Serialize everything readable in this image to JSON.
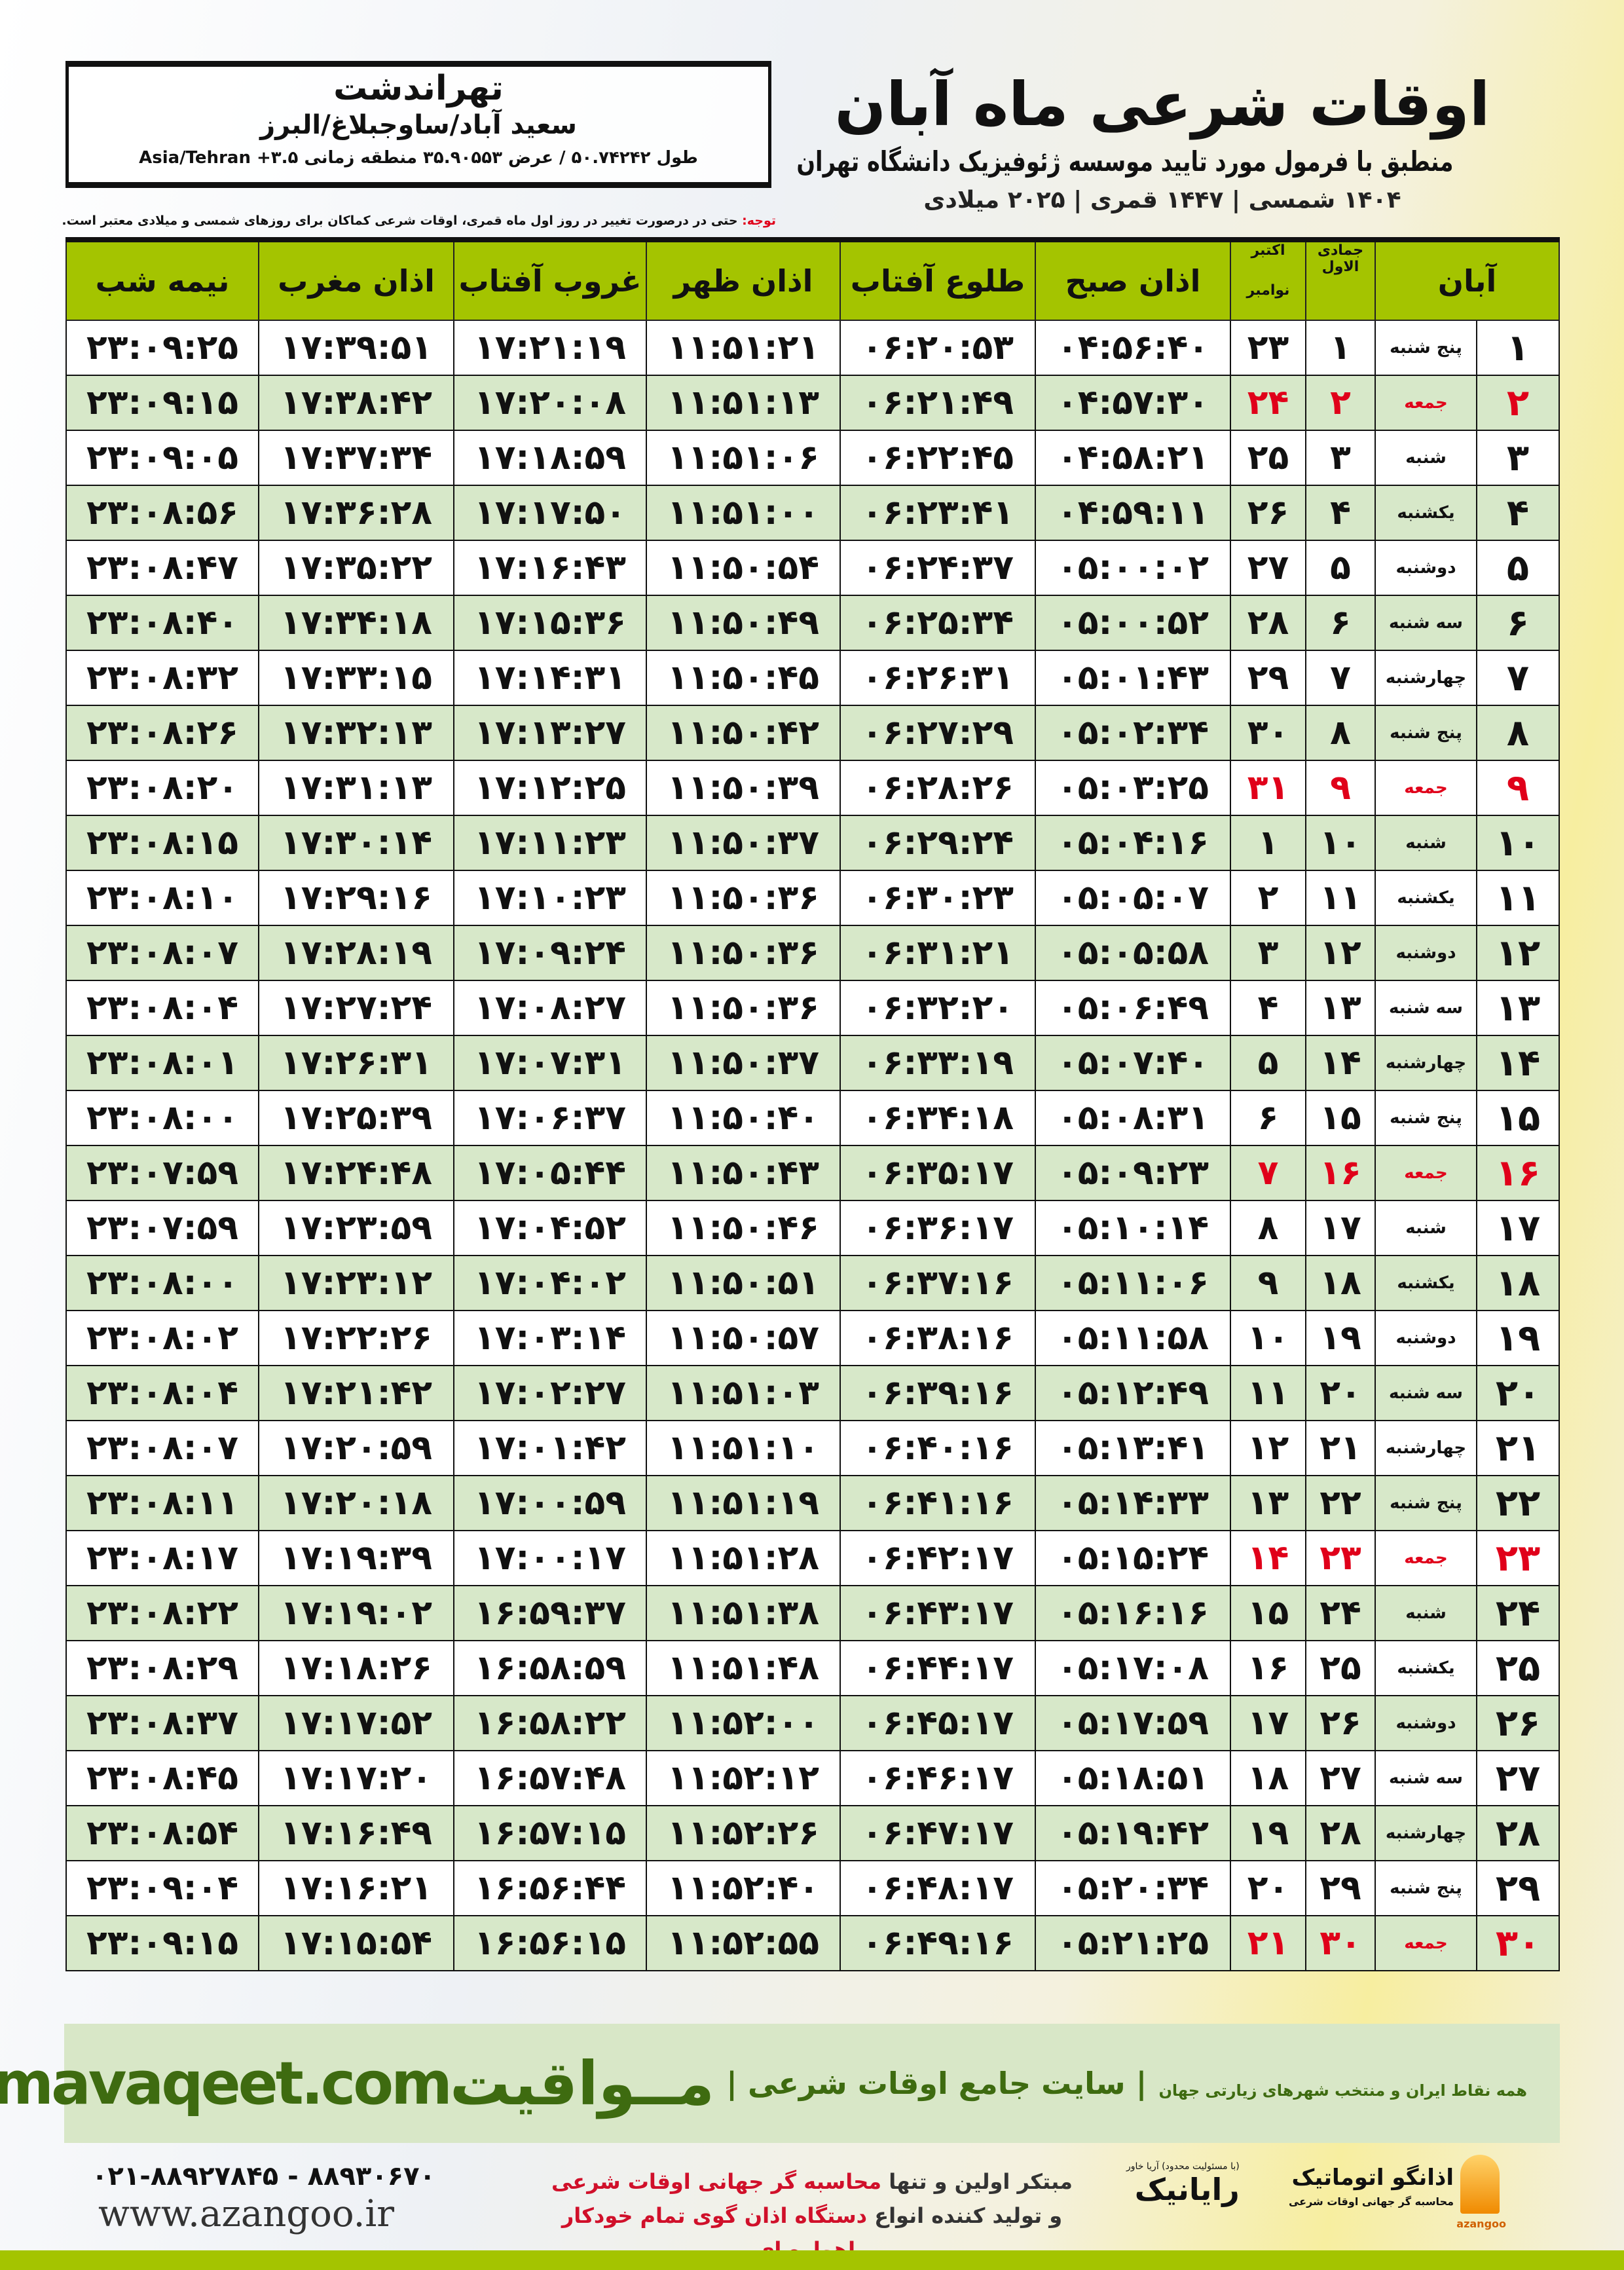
{
  "location": {
    "name": "تهراندشت",
    "region": "سعید آباد/ساوجبلاغ/البرز",
    "coords": "طول ۵۰.۷۴۲۴۲ / عرض ۳۵.۹۰۵۵۳ منطقه زمانی ۳.۵+ Asia/Tehran"
  },
  "header": {
    "title": "اوقات شرعی ماه آبان",
    "subtitle": "منطبق با فرمول مورد تایید موسسه ژئوفیزیک دانشگاه تهران",
    "years": "۱۴۰۴ شمسی | ۱۴۴۷ قمری | ۲۰۲۵ میلادی"
  },
  "note": {
    "label": "توجه:",
    "text": " حتی در درصورت تغییر در روز اول ماه قمری، اوقات شرعی کماکان برای روزهای شمسی و میلادی معتبر است."
  },
  "columns": {
    "aban": "آبان",
    "qamari": "جمادی الاول",
    "gregorian_top": "اکتبر",
    "gregorian_bottom": "نوامبر",
    "sobh": "اذان صبح",
    "tolu": "طلوع آفتاب",
    "zohr": "اذان ظهر",
    "ghorub": "غروب آفتاب",
    "maghrib": "اذان مغرب",
    "nimeshab": "نیمه شب"
  },
  "colors": {
    "header_green": "#a4c400",
    "row_green": "#d7e8c9",
    "friday_red": "#e0001a",
    "brand_green": "#3e6b10"
  },
  "rows": [
    {
      "aban": "۱",
      "weekday": "پنج شنبه",
      "qamari": "۱",
      "greg": "۲۳",
      "sobh": "۰۴:۵۶:۴۰",
      "tolu": "۰۶:۲۰:۵۳",
      "zohr": "۱۱:۵۱:۲۱",
      "ghorub": "۱۷:۲۱:۱۹",
      "maghrib": "۱۷:۳۹:۵۱",
      "nimeshab": "۲۳:۰۹:۲۵",
      "friday": false
    },
    {
      "aban": "۲",
      "weekday": "جمعه",
      "qamari": "۲",
      "greg": "۲۴",
      "sobh": "۰۴:۵۷:۳۰",
      "tolu": "۰۶:۲۱:۴۹",
      "zohr": "۱۱:۵۱:۱۳",
      "ghorub": "۱۷:۲۰:۰۸",
      "maghrib": "۱۷:۳۸:۴۲",
      "nimeshab": "۲۳:۰۹:۱۵",
      "friday": true
    },
    {
      "aban": "۳",
      "weekday": "شنبه",
      "qamari": "۳",
      "greg": "۲۵",
      "sobh": "۰۴:۵۸:۲۱",
      "tolu": "۰۶:۲۲:۴۵",
      "zohr": "۱۱:۵۱:۰۶",
      "ghorub": "۱۷:۱۸:۵۹",
      "maghrib": "۱۷:۳۷:۳۴",
      "nimeshab": "۲۳:۰۹:۰۵",
      "friday": false
    },
    {
      "aban": "۴",
      "weekday": "یکشنبه",
      "qamari": "۴",
      "greg": "۲۶",
      "sobh": "۰۴:۵۹:۱۱",
      "tolu": "۰۶:۲۳:۴۱",
      "zohr": "۱۱:۵۱:۰۰",
      "ghorub": "۱۷:۱۷:۵۰",
      "maghrib": "۱۷:۳۶:۲۸",
      "nimeshab": "۲۳:۰۸:۵۶",
      "friday": false
    },
    {
      "aban": "۵",
      "weekday": "دوشنبه",
      "qamari": "۵",
      "greg": "۲۷",
      "sobh": "۰۵:۰۰:۰۲",
      "tolu": "۰۶:۲۴:۳۷",
      "zohr": "۱۱:۵۰:۵۴",
      "ghorub": "۱۷:۱۶:۴۳",
      "maghrib": "۱۷:۳۵:۲۲",
      "nimeshab": "۲۳:۰۸:۴۷",
      "friday": false
    },
    {
      "aban": "۶",
      "weekday": "سه شنبه",
      "qamari": "۶",
      "greg": "۲۸",
      "sobh": "۰۵:۰۰:۵۲",
      "tolu": "۰۶:۲۵:۳۴",
      "zohr": "۱۱:۵۰:۴۹",
      "ghorub": "۱۷:۱۵:۳۶",
      "maghrib": "۱۷:۳۴:۱۸",
      "nimeshab": "۲۳:۰۸:۴۰",
      "friday": false
    },
    {
      "aban": "۷",
      "weekday": "چهارشنبه",
      "qamari": "۷",
      "greg": "۲۹",
      "sobh": "۰۵:۰۱:۴۳",
      "tolu": "۰۶:۲۶:۳۱",
      "zohr": "۱۱:۵۰:۴۵",
      "ghorub": "۱۷:۱۴:۳۱",
      "maghrib": "۱۷:۳۳:۱۵",
      "nimeshab": "۲۳:۰۸:۳۲",
      "friday": false
    },
    {
      "aban": "۸",
      "weekday": "پنج شنبه",
      "qamari": "۸",
      "greg": "۳۰",
      "sobh": "۰۵:۰۲:۳۴",
      "tolu": "۰۶:۲۷:۲۹",
      "zohr": "۱۱:۵۰:۴۲",
      "ghorub": "۱۷:۱۳:۲۷",
      "maghrib": "۱۷:۳۲:۱۳",
      "nimeshab": "۲۳:۰۸:۲۶",
      "friday": false
    },
    {
      "aban": "۹",
      "weekday": "جمعه",
      "qamari": "۹",
      "greg": "۳۱",
      "sobh": "۰۵:۰۳:۲۵",
      "tolu": "۰۶:۲۸:۲۶",
      "zohr": "۱۱:۵۰:۳۹",
      "ghorub": "۱۷:۱۲:۲۵",
      "maghrib": "۱۷:۳۱:۱۳",
      "nimeshab": "۲۳:۰۸:۲۰",
      "friday": true
    },
    {
      "aban": "۱۰",
      "weekday": "شنبه",
      "qamari": "۱۰",
      "greg": "۱",
      "sobh": "۰۵:۰۴:۱۶",
      "tolu": "۰۶:۲۹:۲۴",
      "zohr": "۱۱:۵۰:۳۷",
      "ghorub": "۱۷:۱۱:۲۳",
      "maghrib": "۱۷:۳۰:۱۴",
      "nimeshab": "۲۳:۰۸:۱۵",
      "friday": false
    },
    {
      "aban": "۱۱",
      "weekday": "یکشنبه",
      "qamari": "۱۱",
      "greg": "۲",
      "sobh": "۰۵:۰۵:۰۷",
      "tolu": "۰۶:۳۰:۲۳",
      "zohr": "۱۱:۵۰:۳۶",
      "ghorub": "۱۷:۱۰:۲۳",
      "maghrib": "۱۷:۲۹:۱۶",
      "nimeshab": "۲۳:۰۸:۱۰",
      "friday": false
    },
    {
      "aban": "۱۲",
      "weekday": "دوشنبه",
      "qamari": "۱۲",
      "greg": "۳",
      "sobh": "۰۵:۰۵:۵۸",
      "tolu": "۰۶:۳۱:۲۱",
      "zohr": "۱۱:۵۰:۳۶",
      "ghorub": "۱۷:۰۹:۲۴",
      "maghrib": "۱۷:۲۸:۱۹",
      "nimeshab": "۲۳:۰۸:۰۷",
      "friday": false
    },
    {
      "aban": "۱۳",
      "weekday": "سه شنبه",
      "qamari": "۱۳",
      "greg": "۴",
      "sobh": "۰۵:۰۶:۴۹",
      "tolu": "۰۶:۳۲:۲۰",
      "zohr": "۱۱:۵۰:۳۶",
      "ghorub": "۱۷:۰۸:۲۷",
      "maghrib": "۱۷:۲۷:۲۴",
      "nimeshab": "۲۳:۰۸:۰۴",
      "friday": false
    },
    {
      "aban": "۱۴",
      "weekday": "چهارشنبه",
      "qamari": "۱۴",
      "greg": "۵",
      "sobh": "۰۵:۰۷:۴۰",
      "tolu": "۰۶:۳۳:۱۹",
      "zohr": "۱۱:۵۰:۳۷",
      "ghorub": "۱۷:۰۷:۳۱",
      "maghrib": "۱۷:۲۶:۳۱",
      "nimeshab": "۲۳:۰۸:۰۱",
      "friday": false
    },
    {
      "aban": "۱۵",
      "weekday": "پنج شنبه",
      "qamari": "۱۵",
      "greg": "۶",
      "sobh": "۰۵:۰۸:۳۱",
      "tolu": "۰۶:۳۴:۱۸",
      "zohr": "۱۱:۵۰:۴۰",
      "ghorub": "۱۷:۰۶:۳۷",
      "maghrib": "۱۷:۲۵:۳۹",
      "nimeshab": "۲۳:۰۸:۰۰",
      "friday": false
    },
    {
      "aban": "۱۶",
      "weekday": "جمعه",
      "qamari": "۱۶",
      "greg": "۷",
      "sobh": "۰۵:۰۹:۲۳",
      "tolu": "۰۶:۳۵:۱۷",
      "zohr": "۱۱:۵۰:۴۳",
      "ghorub": "۱۷:۰۵:۴۴",
      "maghrib": "۱۷:۲۴:۴۸",
      "nimeshab": "۲۳:۰۷:۵۹",
      "friday": true
    },
    {
      "aban": "۱۷",
      "weekday": "شنبه",
      "qamari": "۱۷",
      "greg": "۸",
      "sobh": "۰۵:۱۰:۱۴",
      "tolu": "۰۶:۳۶:۱۷",
      "zohr": "۱۱:۵۰:۴۶",
      "ghorub": "۱۷:۰۴:۵۲",
      "maghrib": "۱۷:۲۳:۵۹",
      "nimeshab": "۲۳:۰۷:۵۹",
      "friday": false
    },
    {
      "aban": "۱۸",
      "weekday": "یکشنبه",
      "qamari": "۱۸",
      "greg": "۹",
      "sobh": "۰۵:۱۱:۰۶",
      "tolu": "۰۶:۳۷:۱۶",
      "zohr": "۱۱:۵۰:۵۱",
      "ghorub": "۱۷:۰۴:۰۲",
      "maghrib": "۱۷:۲۳:۱۲",
      "nimeshab": "۲۳:۰۸:۰۰",
      "friday": false
    },
    {
      "aban": "۱۹",
      "weekday": "دوشنبه",
      "qamari": "۱۹",
      "greg": "۱۰",
      "sobh": "۰۵:۱۱:۵۸",
      "tolu": "۰۶:۳۸:۱۶",
      "zohr": "۱۱:۵۰:۵۷",
      "ghorub": "۱۷:۰۳:۱۴",
      "maghrib": "۱۷:۲۲:۲۶",
      "nimeshab": "۲۳:۰۸:۰۲",
      "friday": false
    },
    {
      "aban": "۲۰",
      "weekday": "سه شنبه",
      "qamari": "۲۰",
      "greg": "۱۱",
      "sobh": "۰۵:۱۲:۴۹",
      "tolu": "۰۶:۳۹:۱۶",
      "zohr": "۱۱:۵۱:۰۳",
      "ghorub": "۱۷:۰۲:۲۷",
      "maghrib": "۱۷:۲۱:۴۲",
      "nimeshab": "۲۳:۰۸:۰۴",
      "friday": false
    },
    {
      "aban": "۲۱",
      "weekday": "چهارشنبه",
      "qamari": "۲۱",
      "greg": "۱۲",
      "sobh": "۰۵:۱۳:۴۱",
      "tolu": "۰۶:۴۰:۱۶",
      "zohr": "۱۱:۵۱:۱۰",
      "ghorub": "۱۷:۰۱:۴۲",
      "maghrib": "۱۷:۲۰:۵۹",
      "nimeshab": "۲۳:۰۸:۰۷",
      "friday": false
    },
    {
      "aban": "۲۲",
      "weekday": "پنج شنبه",
      "qamari": "۲۲",
      "greg": "۱۳",
      "sobh": "۰۵:۱۴:۳۳",
      "tolu": "۰۶:۴۱:۱۶",
      "zohr": "۱۱:۵۱:۱۹",
      "ghorub": "۱۷:۰۰:۵۹",
      "maghrib": "۱۷:۲۰:۱۸",
      "nimeshab": "۲۳:۰۸:۱۱",
      "friday": false
    },
    {
      "aban": "۲۳",
      "weekday": "جمعه",
      "qamari": "۲۳",
      "greg": "۱۴",
      "sobh": "۰۵:۱۵:۲۴",
      "tolu": "۰۶:۴۲:۱۷",
      "zohr": "۱۱:۵۱:۲۸",
      "ghorub": "۱۷:۰۰:۱۷",
      "maghrib": "۱۷:۱۹:۳۹",
      "nimeshab": "۲۳:۰۸:۱۷",
      "friday": true
    },
    {
      "aban": "۲۴",
      "weekday": "شنبه",
      "qamari": "۲۴",
      "greg": "۱۵",
      "sobh": "۰۵:۱۶:۱۶",
      "tolu": "۰۶:۴۳:۱۷",
      "zohr": "۱۱:۵۱:۳۸",
      "ghorub": "۱۶:۵۹:۳۷",
      "maghrib": "۱۷:۱۹:۰۲",
      "nimeshab": "۲۳:۰۸:۲۲",
      "friday": false
    },
    {
      "aban": "۲۵",
      "weekday": "یکشنبه",
      "qamari": "۲۵",
      "greg": "۱۶",
      "sobh": "۰۵:۱۷:۰۸",
      "tolu": "۰۶:۴۴:۱۷",
      "zohr": "۱۱:۵۱:۴۸",
      "ghorub": "۱۶:۵۸:۵۹",
      "maghrib": "۱۷:۱۸:۲۶",
      "nimeshab": "۲۳:۰۸:۲۹",
      "friday": false
    },
    {
      "aban": "۲۶",
      "weekday": "دوشنبه",
      "qamari": "۲۶",
      "greg": "۱۷",
      "sobh": "۰۵:۱۷:۵۹",
      "tolu": "۰۶:۴۵:۱۷",
      "zohr": "۱۱:۵۲:۰۰",
      "ghorub": "۱۶:۵۸:۲۲",
      "maghrib": "۱۷:۱۷:۵۲",
      "nimeshab": "۲۳:۰۸:۳۷",
      "friday": false
    },
    {
      "aban": "۲۷",
      "weekday": "سه شنبه",
      "qamari": "۲۷",
      "greg": "۱۸",
      "sobh": "۰۵:۱۸:۵۱",
      "tolu": "۰۶:۴۶:۱۷",
      "zohr": "۱۱:۵۲:۱۲",
      "ghorub": "۱۶:۵۷:۴۸",
      "maghrib": "۱۷:۱۷:۲۰",
      "nimeshab": "۲۳:۰۸:۴۵",
      "friday": false
    },
    {
      "aban": "۲۸",
      "weekday": "چهارشنبه",
      "qamari": "۲۸",
      "greg": "۱۹",
      "sobh": "۰۵:۱۹:۴۲",
      "tolu": "۰۶:۴۷:۱۷",
      "zohr": "۱۱:۵۲:۲۶",
      "ghorub": "۱۶:۵۷:۱۵",
      "maghrib": "۱۷:۱۶:۴۹",
      "nimeshab": "۲۳:۰۸:۵۴",
      "friday": false
    },
    {
      "aban": "۲۹",
      "weekday": "پنج شنبه",
      "qamari": "۲۹",
      "greg": "۲۰",
      "sobh": "۰۵:۲۰:۳۴",
      "tolu": "۰۶:۴۸:۱۷",
      "zohr": "۱۱:۵۲:۴۰",
      "ghorub": "۱۶:۵۶:۴۴",
      "maghrib": "۱۷:۱۶:۲۱",
      "nimeshab": "۲۳:۰۹:۰۴",
      "friday": false
    },
    {
      "aban": "۳۰",
      "weekday": "جمعه",
      "qamari": "۳۰",
      "greg": "۲۱",
      "sobh": "۰۵:۲۱:۲۵",
      "tolu": "۰۶:۴۹:۱۶",
      "zohr": "۱۱:۵۲:۵۵",
      "ghorub": "۱۶:۵۶:۱۵",
      "maghrib": "۱۷:۱۵:۵۴",
      "nimeshab": "۲۳:۰۹:۱۵",
      "friday": true
    }
  ],
  "footer": {
    "brand": "مــواقیت",
    "slogan": "| سایت جامع اوقات شرعی |",
    "slogan_sub": "همه نقاط ایران و منتخب شهرهای زیارتی جهان",
    "url": "mavaqeet.com",
    "promo_line1_a": "مبتکر اولین و تنها ",
    "promo_line1_b": "محاسبه گر جهانی اوقات شرعی",
    "promo_line2_a": "و تولید کننده انواع ",
    "promo_line2_b": "دستگاه اذان گوی تمام خودکار ماهواره ای",
    "phone": "۰۲۱-۸۸۹۲۷۸۴۵ - ۸۸۹۳۰۶۷۰",
    "site": "www.azangoo.ir",
    "rayanik": "رایانیک",
    "rayanik_small": "(با مسئولیت محدود) آریا خاور",
    "azangoo_name": "اذانگو اتوماتیک",
    "azangoo_sub": "محاسبه گر جهانی اوقات شرعی",
    "azangoo_en": "azangoo"
  }
}
